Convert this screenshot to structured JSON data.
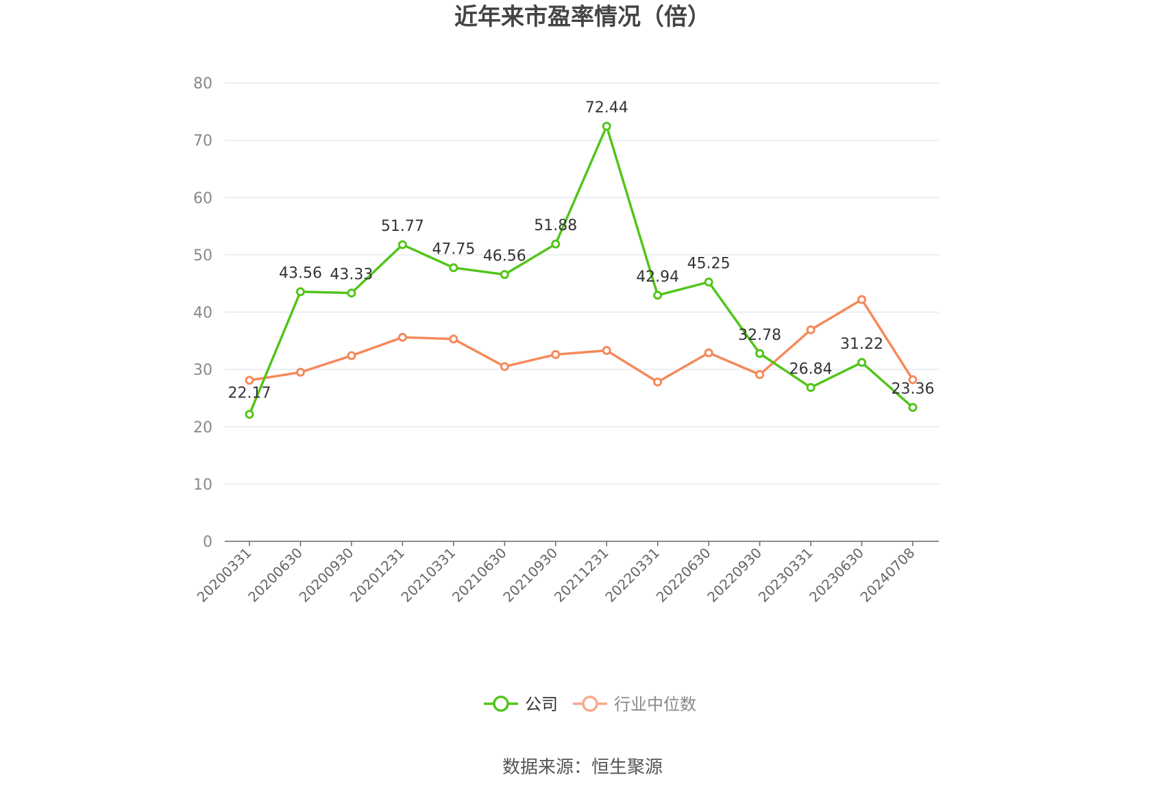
{
  "chart_data": {
    "type": "line",
    "title": "近年来市盈率情况（倍）",
    "categories": [
      "20200331",
      "20200630",
      "20200930",
      "20201231",
      "20210331",
      "20210630",
      "20210930",
      "20211231",
      "20220331",
      "20220630",
      "20220930",
      "20230331",
      "20230630",
      "20240708"
    ],
    "ylim": [
      0,
      80
    ],
    "yticks": [
      0,
      10,
      20,
      30,
      40,
      50,
      60,
      70,
      80
    ],
    "grid": true,
    "legend_position": "bottom-center",
    "series": [
      {
        "name": "公司",
        "color": "#52c41a",
        "values": [
          22.17,
          43.56,
          43.33,
          51.77,
          47.75,
          46.56,
          51.88,
          72.44,
          42.94,
          45.25,
          32.78,
          26.84,
          31.22,
          23.36
        ],
        "labels": [
          "22.17",
          "43.56",
          "43.33",
          "51.77",
          "47.75",
          "46.56",
          "51.88",
          "72.44",
          "42.94",
          "45.25",
          "32.78",
          "26.84",
          "31.22",
          "23.36"
        ]
      },
      {
        "name": "行业中位数",
        "color": "#f5895a",
        "values": [
          28.1,
          29.5,
          32.4,
          35.6,
          35.3,
          30.5,
          32.6,
          33.3,
          27.8,
          32.9,
          29.1,
          36.9,
          42.2,
          28.2
        ]
      }
    ],
    "legend": [
      {
        "label": "公司",
        "color": "#52c41a",
        "text_color": "#333333"
      },
      {
        "label": "行业中位数",
        "color": "#f5a98a",
        "text_color": "#888888"
      }
    ]
  },
  "source": "数据来源：恒生聚源",
  "colors": {
    "grid": "#dde3ef",
    "axis": "#666666"
  }
}
